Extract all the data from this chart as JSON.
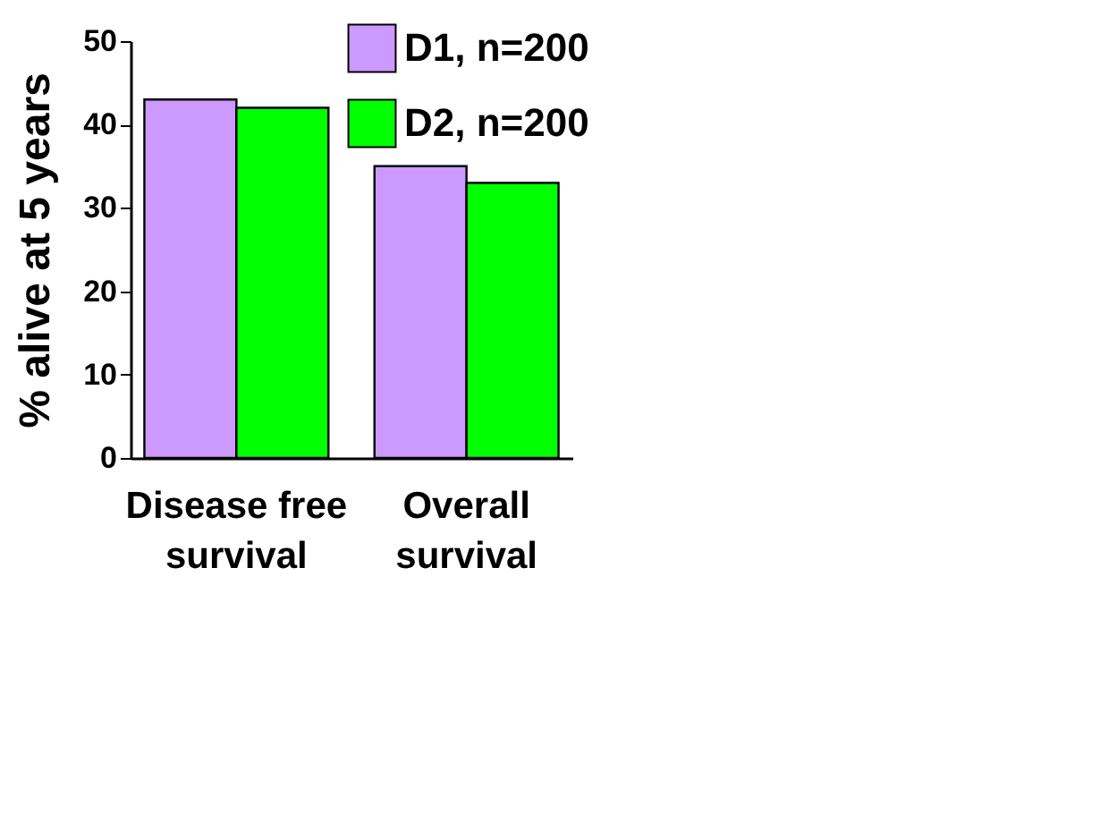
{
  "chart_data": {
    "type": "bar",
    "ylabel": "% alive at 5 years",
    "categories": [
      "Disease free survival",
      "Overall survival"
    ],
    "series": [
      {
        "name": "D1, n=200",
        "color": "#cc99ff",
        "values": [
          43,
          35
        ]
      },
      {
        "name": "D2, n=200",
        "color": "#00ff00",
        "values": [
          42,
          33
        ]
      }
    ],
    "ylim": [
      0,
      50
    ],
    "yticks": [
      0,
      10,
      20,
      30,
      40,
      50
    ],
    "grid": false,
    "legend": "top right"
  }
}
